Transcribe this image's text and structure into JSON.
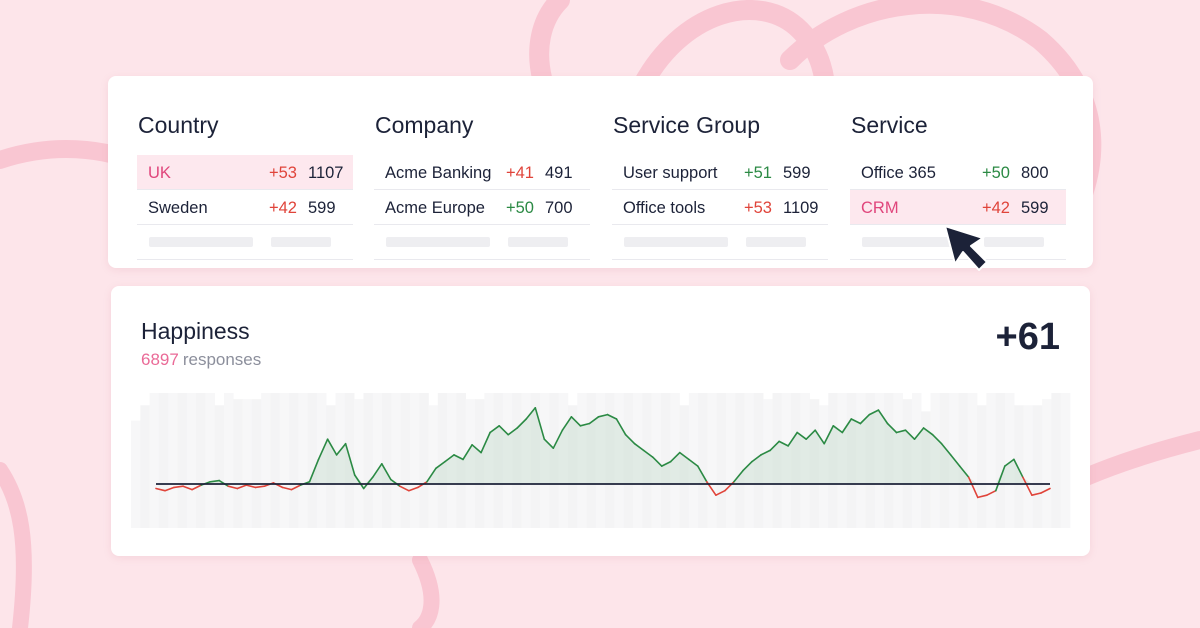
{
  "filters": {
    "columns": [
      {
        "title": "Country",
        "rows": [
          {
            "label": "UK",
            "delta": "+53",
            "count": "1107",
            "trend": "down",
            "highlight": true
          },
          {
            "label": "Sweden",
            "delta": "+42",
            "count": "599",
            "trend": "down",
            "highlight": false
          }
        ]
      },
      {
        "title": "Company",
        "rows": [
          {
            "label": "Acme Banking",
            "delta": "+41",
            "count": "491",
            "trend": "down",
            "highlight": false
          },
          {
            "label": "Acme Europe",
            "delta": "+50",
            "count": "700",
            "trend": "up",
            "highlight": false
          }
        ]
      },
      {
        "title": "Service Group",
        "rows": [
          {
            "label": "User support",
            "delta": "+51",
            "count": "599",
            "trend": "up",
            "highlight": false
          },
          {
            "label": "Office tools",
            "delta": "+53",
            "count": "1109",
            "trend": "down",
            "highlight": false
          }
        ]
      },
      {
        "title": "Service",
        "rows": [
          {
            "label": "Office 365",
            "delta": "+50",
            "count": "800",
            "trend": "up",
            "highlight": false
          },
          {
            "label": "CRM",
            "delta": "+42",
            "count": "599",
            "trend": "down",
            "highlight": true
          }
        ]
      }
    ]
  },
  "happiness": {
    "title": "Happiness",
    "responses_count": "6897",
    "responses_label": "responses",
    "score": "+61"
  },
  "colors": {
    "positive": "#2b8a44",
    "negative": "#e0443a",
    "highlight_text": "#e0467c",
    "background": "#fde5ea"
  },
  "chart_data": {
    "type": "area",
    "baseline": 0,
    "series": [
      {
        "values": [
          -4,
          -6,
          -3,
          -2,
          -5,
          -1,
          2,
          3,
          -2,
          -4,
          -1,
          -3,
          -2,
          1,
          -3,
          -5,
          -1,
          2,
          22,
          40,
          26,
          36,
          8,
          -4,
          6,
          18,
          4,
          -2,
          -6,
          -3,
          2,
          14,
          20,
          26,
          22,
          35,
          28,
          46,
          52,
          44,
          50,
          58,
          68,
          40,
          32,
          48,
          60,
          52,
          54,
          60,
          62,
          58,
          44,
          36,
          30,
          24,
          16,
          20,
          28,
          22,
          16,
          2,
          -10,
          -6,
          2,
          12,
          20,
          26,
          30,
          38,
          34,
          46,
          40,
          48,
          36,
          52,
          46,
          58,
          54,
          62,
          66,
          54,
          46,
          48,
          40,
          50,
          44,
          36,
          26,
          16,
          6,
          -12,
          -10,
          -6,
          16,
          22,
          6,
          -10,
          -8,
          -4
        ]
      }
    ],
    "bars": [
      35,
      40,
      44,
      44,
      44,
      44,
      44,
      44,
      44,
      40,
      44,
      42,
      42,
      42,
      44,
      44,
      44,
      44,
      44,
      44,
      44,
      40,
      44,
      44,
      42,
      44,
      44,
      44,
      44,
      44,
      44,
      44,
      40,
      44,
      44,
      44,
      42,
      42,
      44,
      44,
      44,
      44,
      44,
      44,
      44,
      44,
      44,
      40,
      44,
      44,
      44,
      44,
      44,
      44,
      44,
      44,
      44,
      44,
      44,
      40,
      44,
      44,
      44,
      44,
      44,
      44,
      44,
      44,
      42,
      44,
      44,
      44,
      44,
      42,
      40,
      44,
      44,
      44,
      44,
      44,
      44,
      44,
      44,
      42,
      44,
      38,
      44,
      44,
      44,
      44,
      44,
      40,
      44,
      44,
      44,
      40,
      40,
      40,
      42,
      44,
      44
    ]
  }
}
